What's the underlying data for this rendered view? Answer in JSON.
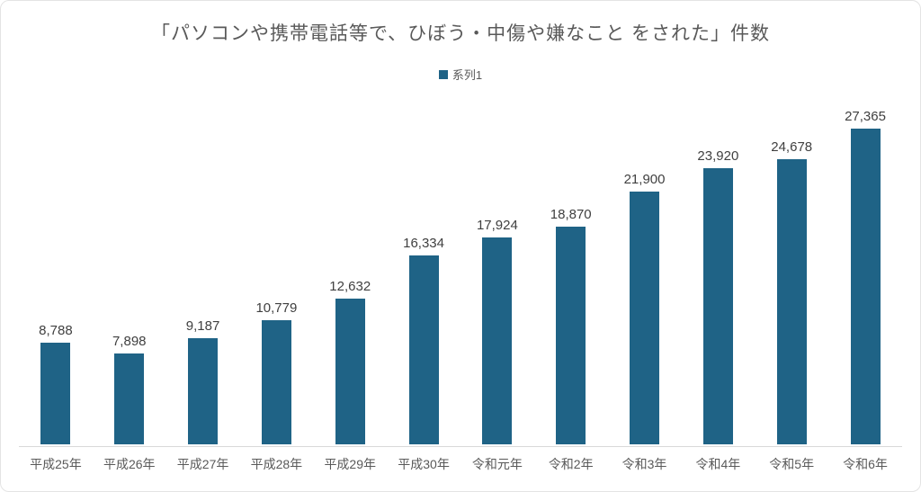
{
  "chart": {
    "title": "「パソコンや携帯電話等で、ひぼう・中傷や嫌なこと をされた」件数",
    "legend": {
      "series_label": "系列1"
    }
  },
  "colors": {
    "bar": "#1f6386",
    "title_text": "#595959",
    "value_label_text": "#404040",
    "axis_label_text": "#595959",
    "axis_line": "#d9d9d9"
  },
  "chart_data": {
    "type": "bar",
    "title": "「パソコンや携帯電話等で、ひぼう・中傷や嫌なこと をされた」件数",
    "categories": [
      "平成25年",
      "平成26年",
      "平成27年",
      "平成28年",
      "平成29年",
      "平成30年",
      "令和元年",
      "令和2年",
      "令和3年",
      "令和4年",
      "令和5年",
      "令和6年"
    ],
    "series": [
      {
        "name": "系列1",
        "values": [
          8788,
          7898,
          9187,
          10779,
          12632,
          16334,
          17924,
          18870,
          21900,
          23920,
          24678,
          27365
        ],
        "labels": [
          "8,788",
          "7,898",
          "9,187",
          "10,779",
          "12,632",
          "16,334",
          "17,924",
          "18,870",
          "21,900",
          "23,920",
          "24,678",
          "27,365"
        ]
      }
    ],
    "xlabel": "",
    "ylabel": "",
    "ylim": [
      0,
      30000
    ],
    "y_axis_visible": false,
    "grid": false,
    "legend_position": "top-center",
    "data_labels": "above-bars"
  }
}
